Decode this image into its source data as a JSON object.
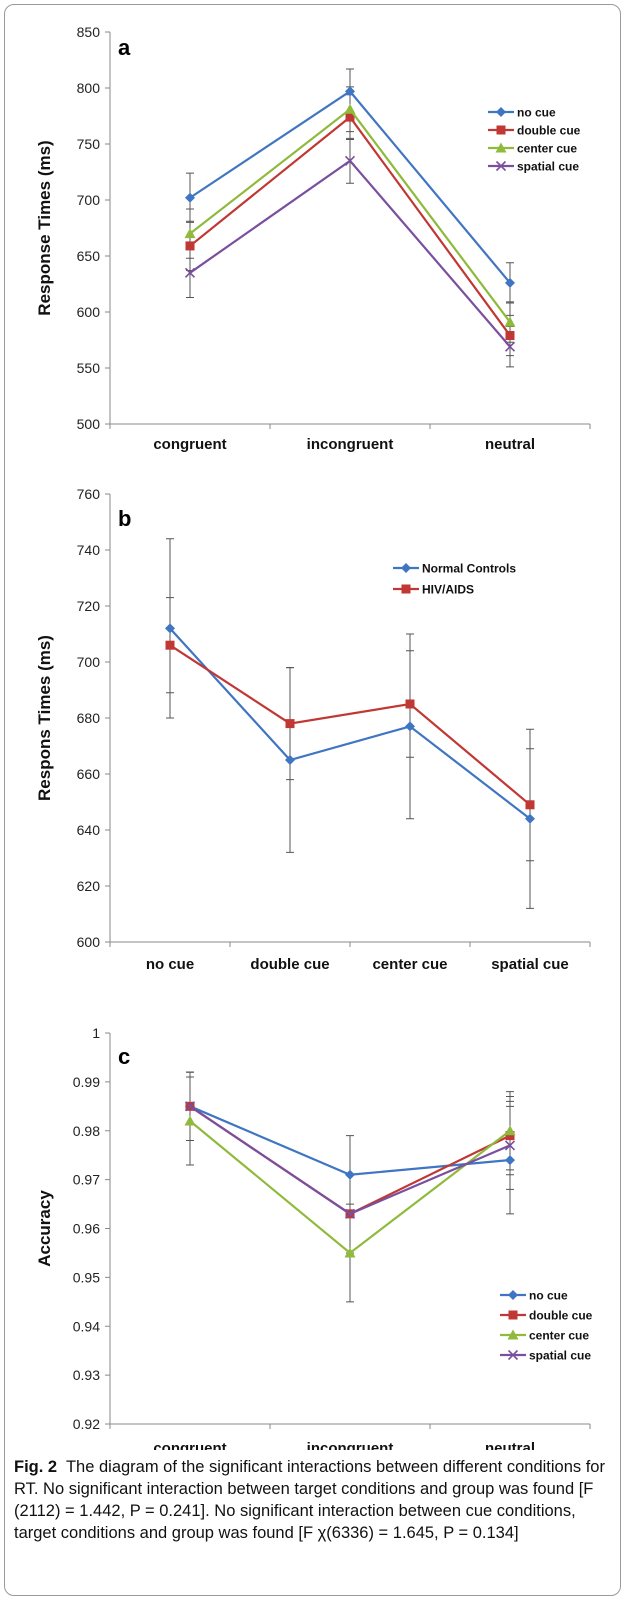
{
  "chart_data": [
    {
      "type": "line",
      "panel": "a",
      "ylabel": "Response Times (ms)",
      "ylim": [
        500,
        850
      ],
      "yticks": [
        500,
        550,
        600,
        650,
        700,
        750,
        800,
        850
      ],
      "categories": [
        "congruent",
        "incongruent",
        "neutral"
      ],
      "legend_position": "top-right",
      "series": [
        {
          "name": "no cue",
          "values": [
            702,
            797,
            626
          ],
          "err": [
            22,
            20,
            18
          ],
          "marker": "diamond",
          "color": "#3f75c2"
        },
        {
          "name": "double cue",
          "values": [
            659,
            774,
            579
          ],
          "err": [
            22,
            20,
            18
          ],
          "marker": "square",
          "color": "#c03733"
        },
        {
          "name": "center cue",
          "values": [
            670,
            781,
            591
          ],
          "err": [
            22,
            20,
            18
          ],
          "marker": "triangle",
          "color": "#8fba3c"
        },
        {
          "name": "spatial cue",
          "values": [
            635,
            735,
            569
          ],
          "err": [
            22,
            20,
            18
          ],
          "marker": "x",
          "color": "#7a4f9e"
        }
      ]
    },
    {
      "type": "line",
      "panel": "b",
      "ylabel": "Respons Times (ms)",
      "ylim": [
        600,
        760
      ],
      "yticks": [
        600,
        620,
        640,
        660,
        680,
        700,
        720,
        740,
        760
      ],
      "categories": [
        "no cue",
        "double cue",
        "center cue",
        "spatial cue"
      ],
      "legend_position": "top-right",
      "series": [
        {
          "name": "Normal Controls",
          "values": [
            712,
            665,
            677,
            644
          ],
          "err": [
            32,
            33,
            33,
            32
          ],
          "marker": "diamond",
          "color": "#3f75c2"
        },
        {
          "name": "HIV/AIDS",
          "values": [
            706,
            678,
            685,
            649
          ],
          "err": [
            17,
            20,
            19,
            20
          ],
          "marker": "square",
          "color": "#c03733"
        }
      ]
    },
    {
      "type": "line",
      "panel": "c",
      "ylabel": "Accuracy",
      "ylim": [
        0.92,
        1
      ],
      "yticks": [
        0.92,
        0.93,
        0.94,
        0.95,
        0.96,
        0.97,
        0.98,
        0.99,
        1
      ],
      "categories": [
        "congruent",
        "incongruent",
        "neutral"
      ],
      "legend_position": "bottom-right",
      "series": [
        {
          "name": "no cue",
          "values": [
            0.985,
            0.971,
            0.974
          ],
          "err": [
            0.007,
            0.008,
            0.011
          ],
          "marker": "diamond",
          "color": "#3f75c2"
        },
        {
          "name": "double cue",
          "values": [
            0.985,
            0.963,
            0.979
          ],
          "err": [
            0.007,
            0.008,
            0.008
          ],
          "marker": "square",
          "color": "#c03733"
        },
        {
          "name": "center cue",
          "values": [
            0.982,
            0.955,
            0.98
          ],
          "err": [
            0.009,
            0.01,
            0.008
          ],
          "marker": "triangle",
          "color": "#8fba3c"
        },
        {
          "name": "spatial cue",
          "values": [
            0.985,
            0.963,
            0.977
          ],
          "err": [
            0.007,
            0.008,
            0.009
          ],
          "marker": "x",
          "color": "#7a4f9e"
        }
      ]
    }
  ],
  "caption": {
    "label": "Fig. 2",
    "text": "The diagram of the significant interactions between different conditions for RT. No significant interaction between target conditions and group was found [F (2112) = 1.442, P = 0.241]. No significant interaction between cue conditions, target conditions and group was found [F χ(6336) = 1.645, P = 0.134]"
  }
}
